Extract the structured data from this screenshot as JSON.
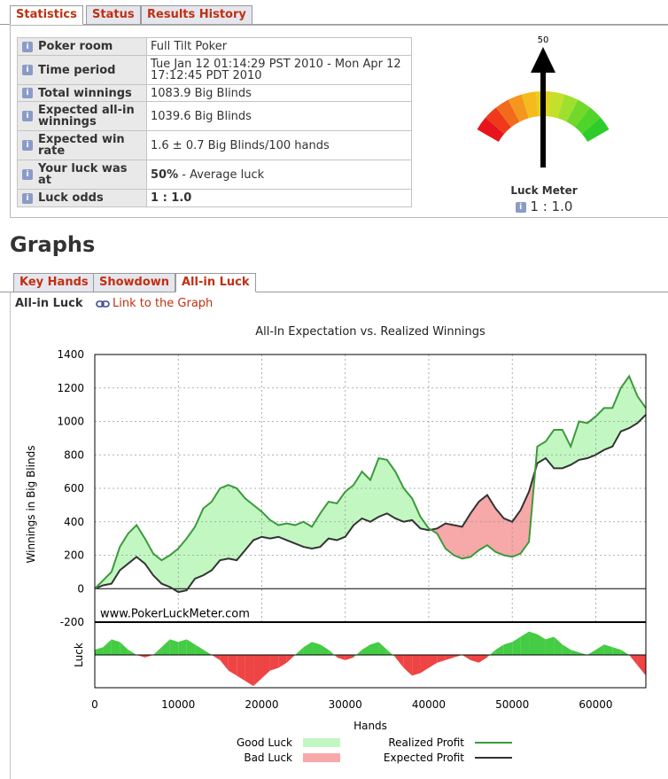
{
  "tabs": {
    "statistics": "Statistics",
    "status": "Status",
    "results_history": "Results History"
  },
  "stats": {
    "poker_room": {
      "label": "Poker room",
      "value": "Full Tilt Poker"
    },
    "time_period": {
      "label": "Time period",
      "value": "Tue Jan 12 01:14:29 PST 2010 - Mon Apr 12 17:12:45 PDT 2010"
    },
    "total_winnings": {
      "label": "Total winnings",
      "value": "1083.9 Big Blinds"
    },
    "expected_allin": {
      "label": "Expected all-in winnings",
      "value": "1039.6 Big Blinds"
    },
    "expected_winrate": {
      "label": "Expected win rate",
      "value": "1.6 ± 0.7 Big Blinds/100 hands"
    },
    "luck": {
      "label": "Your luck was at",
      "value_bold": "50%",
      "value_rest": " - Average luck"
    },
    "luck_odds": {
      "label": "Luck odds",
      "value": "1 : 1.0"
    }
  },
  "meter": {
    "needle_label": "50",
    "needle_percent": 50,
    "title": "Luck Meter",
    "odds": "1 : 1.0",
    "colors": [
      "#e8141c",
      "#ee3a1a",
      "#f26a1c",
      "#f5961f",
      "#f5bb1c",
      "#e6cf1a",
      "#c5e02a",
      "#9fe02e",
      "#72d82a",
      "#4fd42a",
      "#2ecc2a"
    ]
  },
  "graphs_heading": "Graphs",
  "graph_tabs": {
    "key_hands": "Key Hands",
    "showdown": "Showdown",
    "allin_luck": "All-in Luck"
  },
  "graph_header": {
    "title": "All-in Luck",
    "link": "Link to the Graph"
  },
  "chart_data": {
    "type": "line",
    "title": "All-In Expectation vs. Realized Winnings",
    "xlabel": "Hands",
    "ylabel": "Winnings in Big Blinds",
    "luck_label": "Luck",
    "watermark": "www.PokerLuckMeter.com",
    "xlim": [
      0,
      66000
    ],
    "ylim": [
      -200,
      1400
    ],
    "x_ticks": [
      0,
      10000,
      20000,
      30000,
      40000,
      50000,
      60000
    ],
    "y_ticks": [
      -200,
      0,
      200,
      400,
      600,
      800,
      1000,
      1200,
      1400
    ],
    "grid": true,
    "legend": {
      "good_luck": "Good Luck",
      "bad_luck": "Bad Luck",
      "realized": "Realized Profit",
      "expected": "Expected Profit"
    },
    "colors": {
      "good_fill": "#c2f7c2",
      "bad_fill": "#f7a8a8",
      "realized": "#3c9a3c",
      "expected": "#333333",
      "luck_good": "#44cc44",
      "luck_bad": "#ee4444"
    },
    "x": [
      0,
      1000,
      2000,
      3000,
      4000,
      5000,
      6000,
      7000,
      8000,
      9000,
      10000,
      11000,
      12000,
      13000,
      14000,
      15000,
      16000,
      17000,
      18000,
      19000,
      20000,
      21000,
      22000,
      23000,
      24000,
      25000,
      26000,
      27000,
      28000,
      29000,
      30000,
      31000,
      32000,
      33000,
      34000,
      35000,
      36000,
      37000,
      38000,
      39000,
      40000,
      41000,
      42000,
      43000,
      44000,
      45000,
      46000,
      47000,
      48000,
      49000,
      50000,
      51000,
      52000,
      53000,
      54000,
      55000,
      56000,
      57000,
      58000,
      59000,
      60000,
      61000,
      62000,
      63000,
      64000,
      65000,
      66000
    ],
    "series": [
      {
        "name": "Realized Profit",
        "values": [
          0,
          50,
          100,
          250,
          330,
          380,
          300,
          210,
          170,
          200,
          240,
          300,
          370,
          480,
          520,
          600,
          620,
          600,
          540,
          500,
          460,
          410,
          380,
          390,
          380,
          400,
          370,
          450,
          520,
          510,
          580,
          620,
          700,
          650,
          780,
          770,
          700,
          600,
          540,
          430,
          360,
          330,
          240,
          200,
          180,
          190,
          230,
          260,
          220,
          200,
          190,
          210,
          280,
          850,
          880,
          950,
          950,
          850,
          1000,
          990,
          1030,
          1080,
          1080,
          1200,
          1270,
          1150,
          1080
        ]
      },
      {
        "name": "Expected Profit",
        "values": [
          0,
          20,
          30,
          110,
          150,
          190,
          150,
          80,
          30,
          10,
          -20,
          -10,
          60,
          80,
          110,
          170,
          180,
          170,
          230,
          290,
          310,
          300,
          310,
          290,
          270,
          250,
          240,
          250,
          300,
          290,
          310,
          380,
          420,
          400,
          430,
          450,
          420,
          400,
          410,
          360,
          350,
          360,
          390,
          380,
          370,
          450,
          520,
          560,
          480,
          420,
          400,
          470,
          580,
          750,
          780,
          720,
          720,
          740,
          770,
          780,
          800,
          830,
          850,
          940,
          960,
          990,
          1040
        ]
      },
      {
        "name": "Luck",
        "values": [
          10,
          15,
          30,
          25,
          10,
          0,
          -5,
          0,
          15,
          30,
          25,
          30,
          20,
          10,
          0,
          -10,
          -30,
          -40,
          -50,
          -60,
          -45,
          -30,
          -25,
          -15,
          0,
          15,
          25,
          20,
          10,
          -5,
          -10,
          -5,
          10,
          20,
          25,
          10,
          -5,
          -25,
          -40,
          -35,
          -25,
          -15,
          -10,
          -5,
          0,
          -10,
          -15,
          -5,
          10,
          20,
          25,
          35,
          45,
          40,
          30,
          35,
          20,
          10,
          5,
          0,
          10,
          20,
          15,
          10,
          0,
          -20,
          -40
        ]
      }
    ]
  }
}
